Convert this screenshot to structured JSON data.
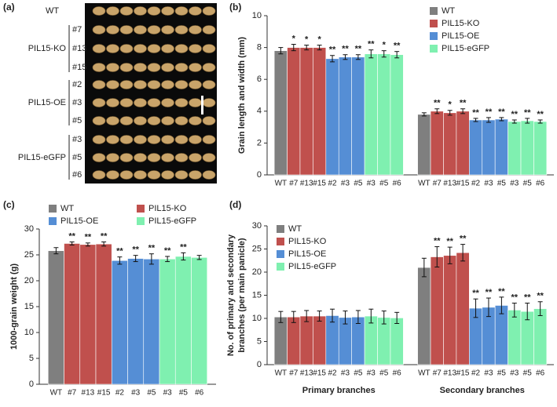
{
  "image_panel": {
    "panel_label": "(a)",
    "top_row": "WT",
    "groups": [
      {
        "name": "PIL15-KO",
        "lines": [
          "#7",
          "#13",
          "#15"
        ]
      },
      {
        "name": "PIL15-OE",
        "lines": [
          "#2",
          "#3",
          "#5"
        ]
      },
      {
        "name": "PIL15-eGFP",
        "lines": [
          "#3",
          "#5",
          "#6"
        ]
      }
    ]
  },
  "chart_data": [
    {
      "type": "bar",
      "panel_label": "(b)",
      "ylabel": "Grain length and width (mm)",
      "ylim": [
        0,
        10
      ],
      "yticks": [
        0,
        2,
        4,
        6,
        8,
        10
      ],
      "legend": "upper right",
      "series": [
        {
          "name": "WT",
          "color": "#7f7f7f",
          "categories": [
            "WT"
          ],
          "values": [
            [
              7.8
            ],
            [
              3.8
            ]
          ],
          "errors": [
            [
              0.2
            ],
            [
              0.1
            ]
          ],
          "significance": [
            [
              null
            ],
            [
              null
            ]
          ]
        },
        {
          "name": "PIL15-KO",
          "color": "#c0504d",
          "categories": [
            "#7",
            "#13",
            "#15"
          ],
          "values": [
            [
              8.0,
              8.0,
              8.0
            ],
            [
              4.0,
              3.9,
              4.0
            ]
          ],
          "errors": [
            [
              0.2,
              0.15,
              0.15
            ],
            [
              0.15,
              0.15,
              0.15
            ]
          ],
          "significance": [
            [
              "*",
              "*",
              "*"
            ],
            [
              "**",
              "*",
              "**"
            ]
          ]
        },
        {
          "name": "PIL15-OE",
          "color": "#558ed5",
          "categories": [
            "#2",
            "#3",
            "#5"
          ],
          "values": [
            [
              7.3,
              7.4,
              7.4
            ],
            [
              3.45,
              3.45,
              3.5
            ]
          ],
          "errors": [
            [
              0.2,
              0.15,
              0.15
            ],
            [
              0.1,
              0.15,
              0.1
            ]
          ],
          "significance": [
            [
              "**",
              "**",
              "**"
            ],
            [
              "**",
              "**",
              "**"
            ]
          ]
        },
        {
          "name": "PIL15-eGFP",
          "color": "#7ff0b0",
          "categories": [
            "#3",
            "#5",
            "#6"
          ],
          "values": [
            [
              7.6,
              7.6,
              7.55
            ],
            [
              3.35,
              3.4,
              3.35
            ]
          ],
          "errors": [
            [
              0.25,
              0.2,
              0.2
            ],
            [
              0.1,
              0.15,
              0.1
            ]
          ],
          "significance": [
            [
              "**",
              "*",
              "**"
            ],
            [
              "**",
              "**",
              "**"
            ]
          ]
        }
      ]
    },
    {
      "type": "bar",
      "panel_label": "(c)",
      "ylabel": "1000-grain weight (g)",
      "ylim": [
        0,
        30
      ],
      "yticks": [
        0,
        5,
        10,
        15,
        20,
        25,
        30
      ],
      "legend": "upper left",
      "legend_columns": 2,
      "series": [
        {
          "name": "WT",
          "color": "#7f7f7f",
          "categories": [
            "WT"
          ],
          "values": [
            [
              25.8
            ]
          ],
          "errors": [
            [
              0.6
            ]
          ],
          "significance": [
            [
              null
            ]
          ]
        },
        {
          "name": "PIL15-KO",
          "color": "#c0504d",
          "categories": [
            "#7",
            "#13",
            "#15"
          ],
          "values": [
            [
              27.2,
              27.0,
              27.1
            ]
          ],
          "errors": [
            [
              0.3,
              0.3,
              0.4
            ]
          ],
          "significance": [
            [
              "**",
              "**",
              "**"
            ]
          ]
        },
        {
          "name": "PIL15-OE",
          "color": "#558ed5",
          "categories": [
            "#2",
            "#3",
            "#5"
          ],
          "values": [
            [
              23.9,
              24.3,
              24.2
            ]
          ],
          "errors": [
            [
              0.7,
              0.6,
              1.0
            ]
          ],
          "significance": [
            [
              "**",
              "**",
              "**"
            ]
          ]
        },
        {
          "name": "PIL15-eGFP",
          "color": "#7ff0b0",
          "categories": [
            "#3",
            "#5",
            "#6"
          ],
          "values": [
            [
              24.2,
              24.7,
              24.5
            ]
          ],
          "errors": [
            [
              0.5,
              0.7,
              0.4
            ]
          ],
          "significance": [
            [
              "**",
              "**",
              null
            ]
          ]
        }
      ]
    },
    {
      "type": "bar",
      "panel_label": "(d)",
      "ylabel": [
        "No. of primary and secondary",
        "branches (per main panicle)"
      ],
      "ylim": [
        0,
        30
      ],
      "yticks": [
        0,
        5,
        10,
        15,
        20,
        25,
        30
      ],
      "legend": "upper left",
      "groups": [
        "Primary branches",
        "Secondary branches"
      ],
      "series": [
        {
          "name": "WT",
          "color": "#7f7f7f",
          "categories": [
            "WT"
          ],
          "values": [
            [
              10.3
            ],
            [
              21.0
            ]
          ],
          "errors": [
            [
              1.2
            ],
            [
              2.0
            ]
          ],
          "significance": [
            [
              null
            ],
            [
              null
            ]
          ]
        },
        {
          "name": "PIL15-KO",
          "color": "#c0504d",
          "categories": [
            "#7",
            "#13",
            "#15"
          ],
          "values": [
            [
              10.3,
              10.5,
              10.5
            ],
            [
              23.3,
              23.6,
              24.2
            ]
          ],
          "errors": [
            [
              1.2,
              1.2,
              1.1
            ],
            [
              2.2,
              1.8,
              1.8
            ]
          ],
          "significance": [
            [
              null,
              null,
              null
            ],
            [
              "**",
              "**",
              "**"
            ]
          ]
        },
        {
          "name": "PIL15-OE",
          "color": "#558ed5",
          "categories": [
            "#2",
            "#3",
            "#5"
          ],
          "values": [
            [
              10.6,
              10.2,
              10.3
            ],
            [
              12.2,
              12.4,
              12.8
            ]
          ],
          "errors": [
            [
              1.4,
              1.4,
              1.4
            ],
            [
              2.0,
              2.0,
              1.8
            ]
          ],
          "significance": [
            [
              null,
              null,
              null
            ],
            [
              "**",
              "**",
              "**"
            ]
          ]
        },
        {
          "name": "PIL15-eGFP",
          "color": "#7ff0b0",
          "categories": [
            "#3",
            "#5",
            "#6"
          ],
          "values": [
            [
              10.5,
              10.2,
              10.1
            ],
            [
              11.8,
              11.5,
              12.1
            ]
          ],
          "errors": [
            [
              1.5,
              1.4,
              1.2
            ],
            [
              1.5,
              1.8,
              1.5
            ]
          ],
          "significance": [
            [
              null,
              null,
              null
            ],
            [
              "**",
              "**",
              "**"
            ]
          ]
        }
      ]
    }
  ]
}
